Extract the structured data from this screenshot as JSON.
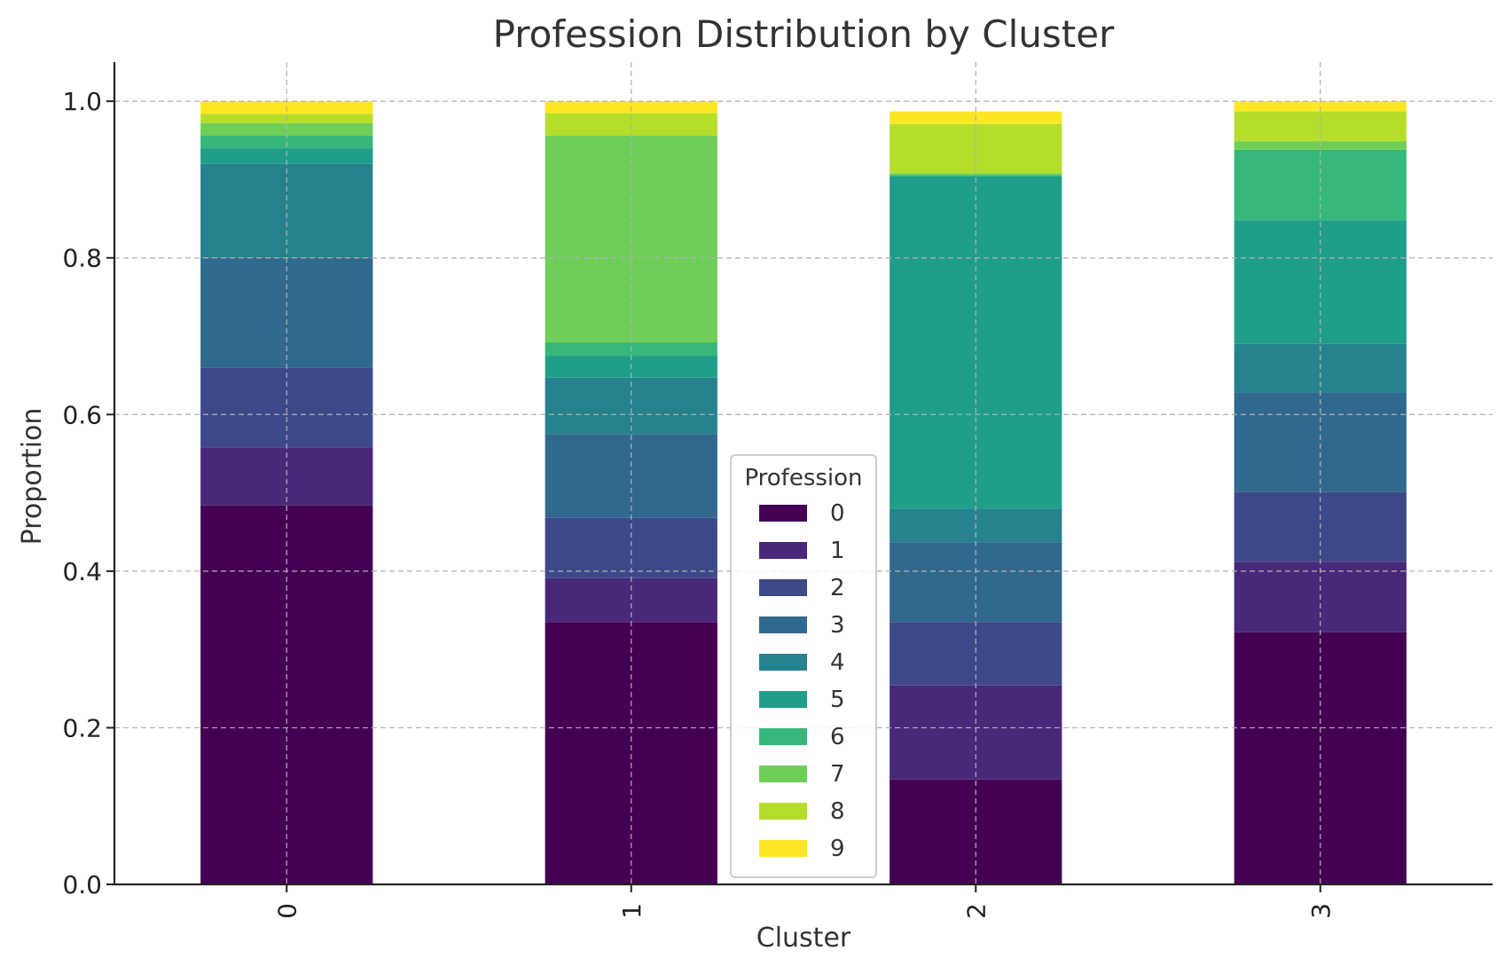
{
  "chart_data": {
    "type": "bar",
    "stacked": true,
    "title": "Profession Distribution by Cluster",
    "xlabel": "Cluster",
    "ylabel": "Proportion",
    "categories": [
      "0",
      "1",
      "2",
      "3"
    ],
    "ylim": [
      0,
      1.05
    ],
    "yticks": [
      "0.0",
      "0.2",
      "0.4",
      "0.6",
      "0.8",
      "1.0"
    ],
    "grid": true,
    "legend": {
      "title": "Profession",
      "position": "bottom-center"
    },
    "series": [
      {
        "name": "0",
        "color": "#440154",
        "values": [
          0.484,
          0.335,
          0.134,
          0.322
        ]
      },
      {
        "name": "1",
        "color": "#482878",
        "values": [
          0.074,
          0.056,
          0.12,
          0.09
        ]
      },
      {
        "name": "2",
        "color": "#3e4989",
        "values": [
          0.102,
          0.077,
          0.081,
          0.089
        ]
      },
      {
        "name": "3",
        "color": "#31688e",
        "values": [
          0.14,
          0.107,
          0.102,
          0.127
        ]
      },
      {
        "name": "4",
        "color": "#26828e",
        "values": [
          0.12,
          0.072,
          0.043,
          0.062
        ]
      },
      {
        "name": "5",
        "color": "#1f9e89",
        "values": [
          0.02,
          0.028,
          0.424,
          0.158
        ]
      },
      {
        "name": "6",
        "color": "#35b779",
        "values": [
          0.016,
          0.017,
          0.002,
          0.09
        ]
      },
      {
        "name": "7",
        "color": "#6ece58",
        "values": [
          0.016,
          0.264,
          0.002,
          0.011
        ]
      },
      {
        "name": "8",
        "color": "#b5de2b",
        "values": [
          0.012,
          0.029,
          0.063,
          0.038
        ]
      },
      {
        "name": "9",
        "color": "#fde725",
        "values": [
          0.016,
          0.015,
          0.016,
          0.013
        ]
      }
    ]
  }
}
